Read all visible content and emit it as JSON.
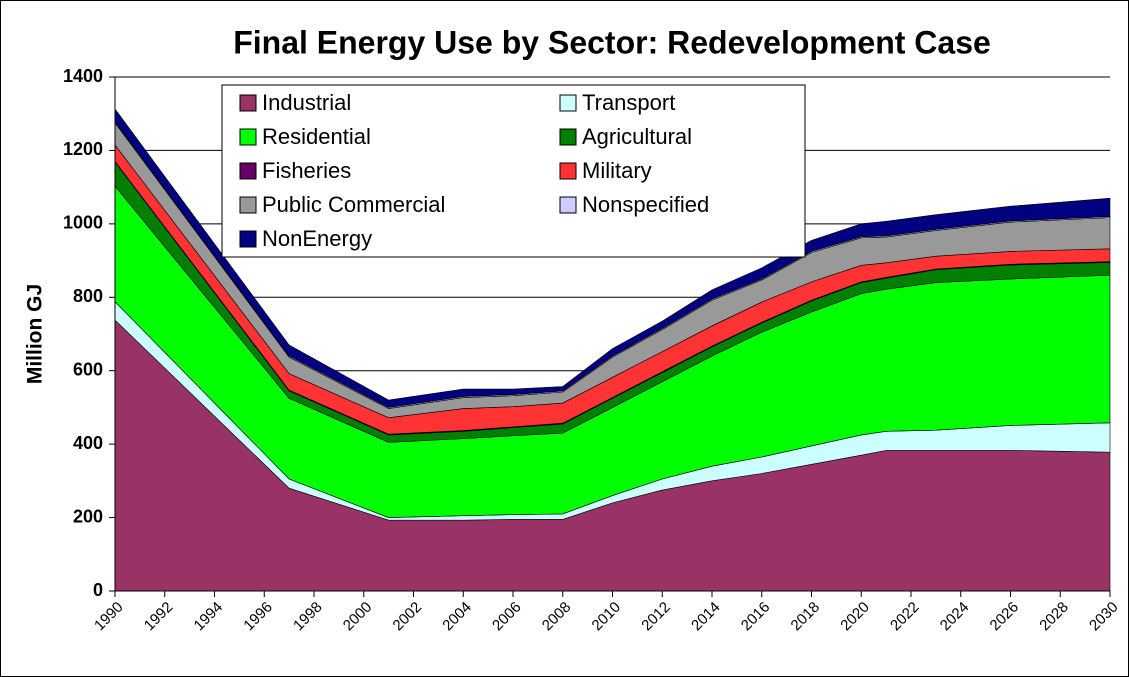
{
  "chart_data": {
    "type": "stacked_area",
    "title": "Final Energy Use by Sector: Redevelopment Case",
    "y_label": "Million GJ",
    "x": [
      1990,
      1997,
      2001,
      2004,
      2006,
      2008,
      2010,
      2012,
      2014,
      2016,
      2018,
      2020,
      2021,
      2023,
      2026,
      2030
    ],
    "xlim": [
      1990,
      2030
    ],
    "xticks": [
      1990,
      1992,
      1994,
      1996,
      1998,
      2000,
      2002,
      2004,
      2006,
      2008,
      2010,
      2012,
      2014,
      2016,
      2018,
      2020,
      2022,
      2024,
      2026,
      2028,
      2030
    ],
    "ylim": [
      0,
      1400
    ],
    "yticks": [
      0,
      200,
      400,
      600,
      800,
      1000,
      1200,
      1400
    ],
    "grid": true,
    "legend": "top-left",
    "series": [
      {
        "name": "Industrial",
        "color": "#993366",
        "values": [
          738,
          280,
          193,
          193,
          195,
          195,
          240,
          275,
          300,
          320,
          345,
          370,
          383,
          383,
          383,
          378
        ]
      },
      {
        "name": "Transport",
        "color": "#ccffff",
        "values": [
          50,
          25,
          7,
          12,
          13,
          15,
          20,
          30,
          40,
          45,
          50,
          55,
          52,
          55,
          68,
          80
        ]
      },
      {
        "name": "Residential",
        "color": "#00ff00",
        "values": [
          315,
          220,
          205,
          210,
          215,
          220,
          240,
          265,
          300,
          340,
          365,
          385,
          387,
          402,
          399,
          402
        ]
      },
      {
        "name": "Agricultural",
        "color": "#008000",
        "values": [
          65,
          20,
          20,
          20,
          22,
          25,
          25,
          25,
          25,
          25,
          30,
          30,
          30,
          35,
          38,
          35
        ]
      },
      {
        "name": "Fisheries",
        "color": "#660066",
        "values": [
          2,
          2,
          2,
          2,
          2,
          2,
          2,
          2,
          2,
          2,
          2,
          2,
          2,
          2,
          2,
          2
        ]
      },
      {
        "name": "Military",
        "color": "#ff3333",
        "values": [
          45,
          45,
          45,
          60,
          55,
          55,
          55,
          55,
          55,
          55,
          50,
          45,
          40,
          35,
          35,
          35
        ]
      },
      {
        "name": "Public Commercial",
        "color": "#999999",
        "values": [
          60,
          45,
          25,
          30,
          30,
          30,
          55,
          60,
          70,
          60,
          80,
          75,
          70,
          70,
          80,
          85
        ]
      },
      {
        "name": "Nonspecified",
        "color": "#ccccff",
        "values": [
          3,
          3,
          3,
          3,
          3,
          3,
          3,
          3,
          3,
          3,
          3,
          3,
          3,
          3,
          3,
          3
        ]
      },
      {
        "name": "NonEnergy",
        "color": "#000080",
        "values": [
          35,
          30,
          20,
          20,
          15,
          12,
          20,
          20,
          25,
          30,
          30,
          35,
          40,
          40,
          40,
          50
        ]
      }
    ]
  }
}
